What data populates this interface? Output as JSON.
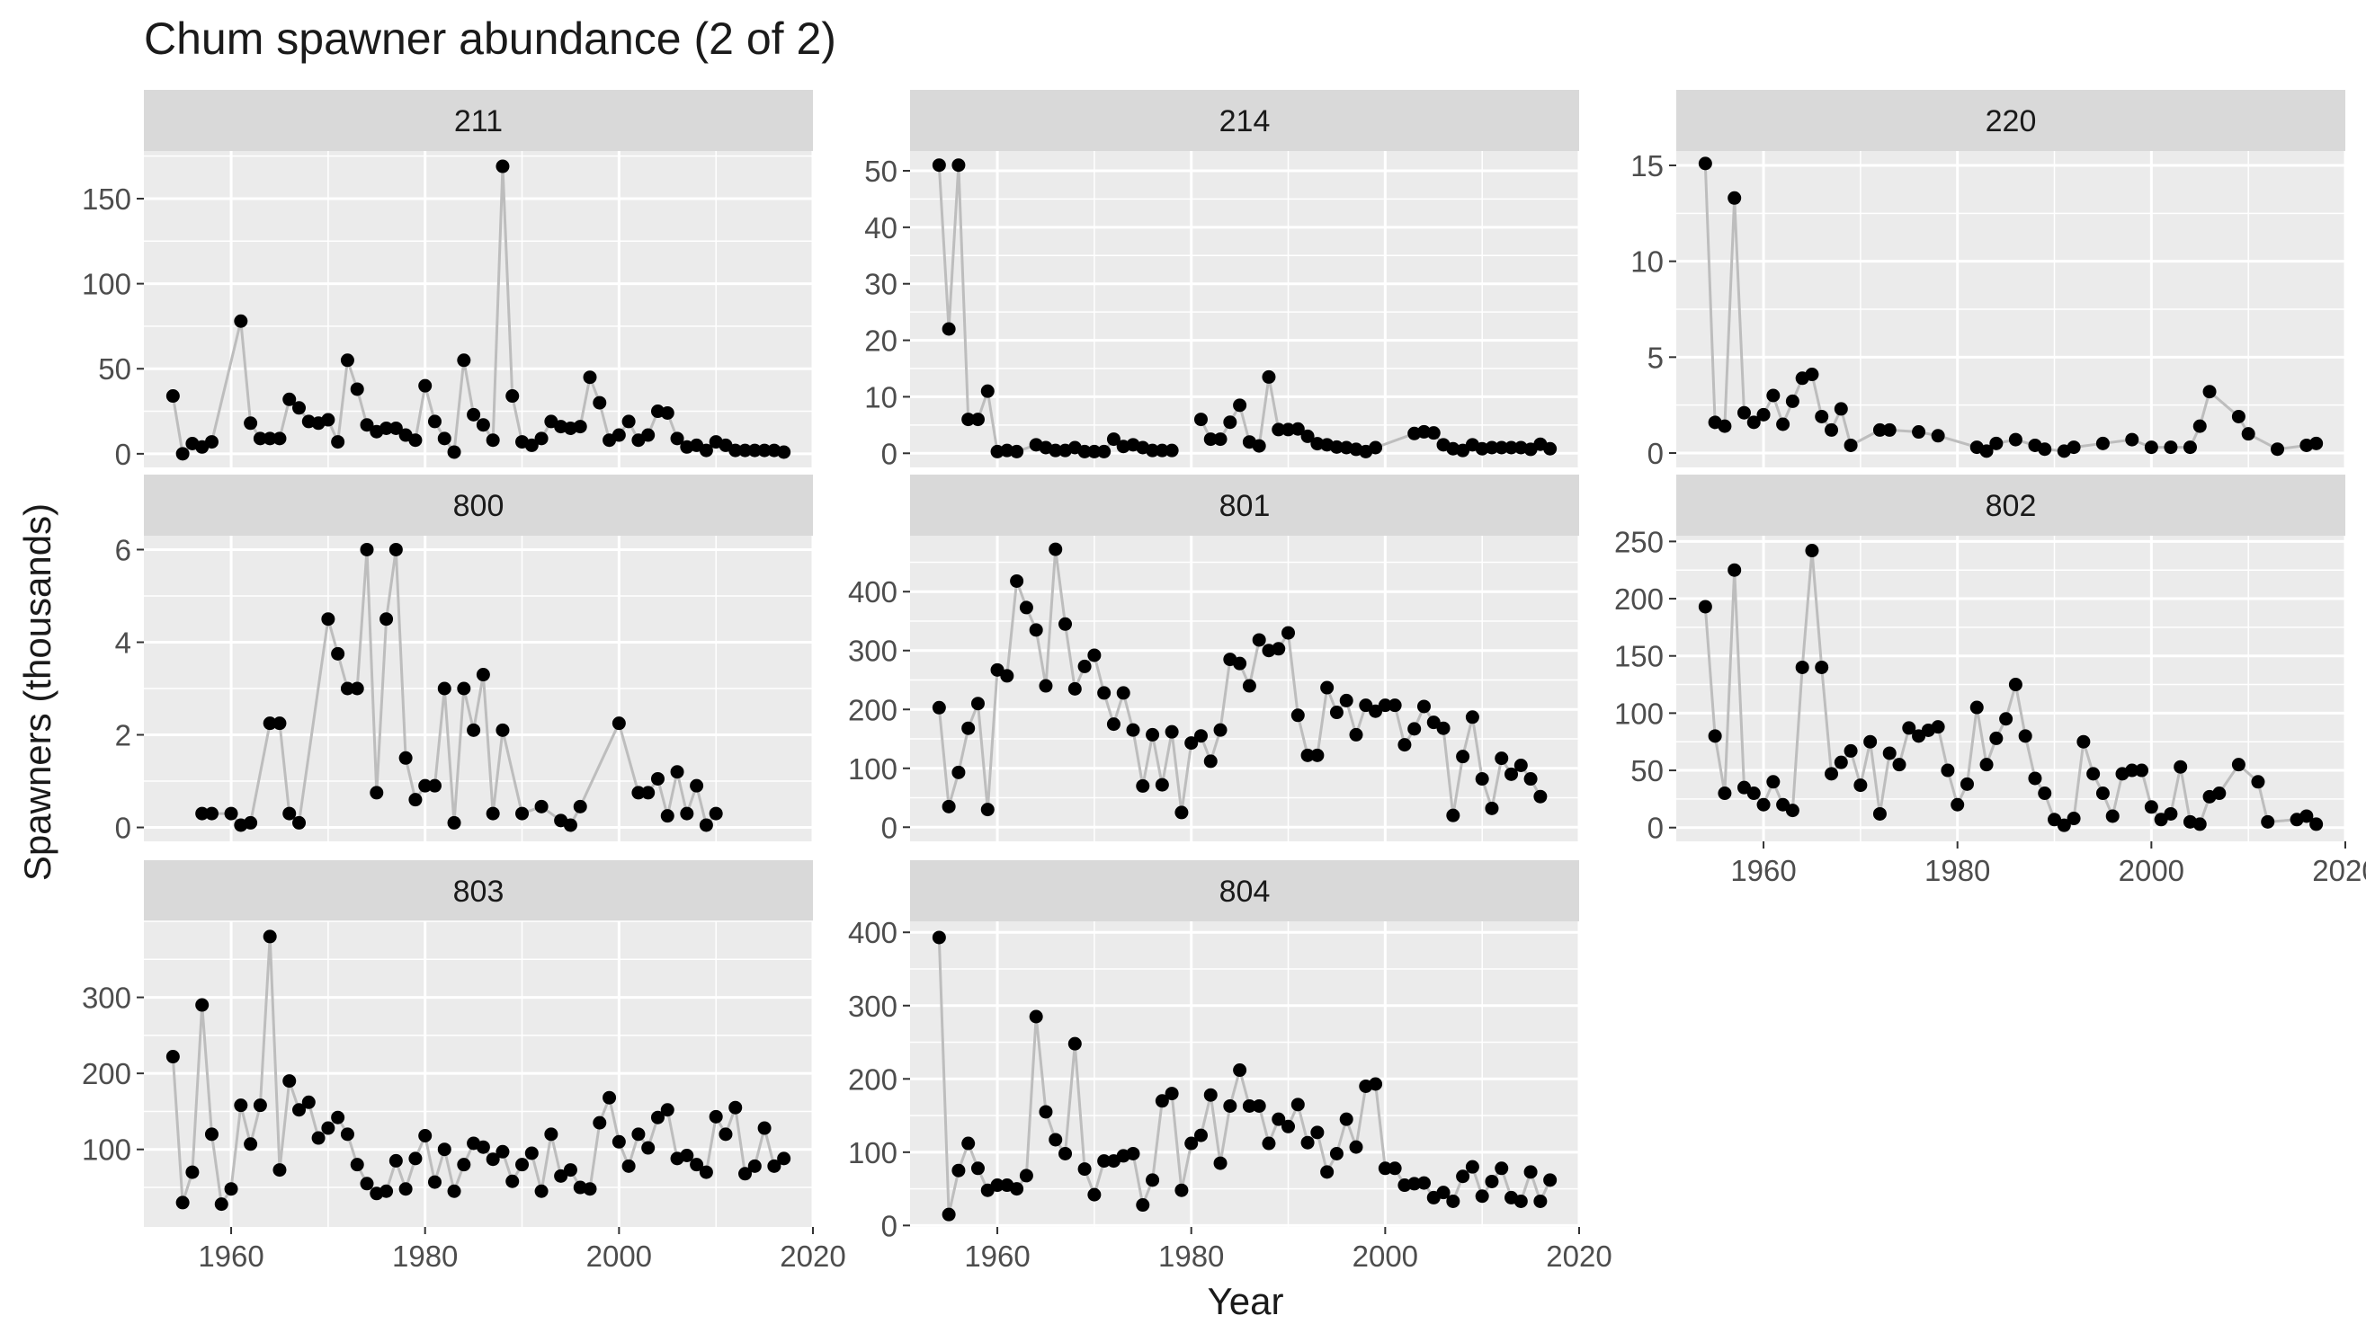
{
  "title": "Chum spawner abundance (2 of 2)",
  "xlabel": "Year",
  "ylabel": "Spawners (thousands)",
  "colors": {
    "panel_bg": "#ebebeb",
    "strip_bg": "#d9d9d9",
    "grid": "#ffffff",
    "line": "#bdbdbd",
    "point": "#000000",
    "text": "#1a1a1a",
    "axis_text": "#4d4d4d"
  },
  "chart_data": {
    "type": "line",
    "facet_layout": "3 columns x 3 rows, free y scales, shared x",
    "xlim": [
      1951,
      2020
    ],
    "x_ticks": [
      1960,
      1980,
      2000,
      2020
    ],
    "panels": [
      {
        "name": "211",
        "ylim": [
          -8,
          178
        ],
        "y_ticks": [
          0,
          50,
          100,
          150
        ],
        "x": [
          1954,
          1955,
          1956,
          1957,
          1958,
          1961,
          1962,
          1963,
          1964,
          1965,
          1966,
          1967,
          1968,
          1969,
          1970,
          1971,
          1972,
          1973,
          1974,
          1975,
          1976,
          1977,
          1978,
          1979,
          1980,
          1981,
          1982,
          1983,
          1984,
          1985,
          1986,
          1987,
          1988,
          1989,
          1990,
          1991,
          1992,
          1993,
          1994,
          1995,
          1996,
          1997,
          1998,
          1999,
          2000,
          2001,
          2002,
          2003,
          2004,
          2005,
          2006,
          2007,
          2008,
          2009,
          2010,
          2011,
          2012,
          2013,
          2014,
          2015,
          2016,
          2017
        ],
        "y": [
          34,
          0,
          6,
          4,
          7,
          78,
          18,
          9,
          9,
          9,
          32,
          27,
          19,
          18,
          20,
          7,
          55,
          38,
          17,
          13,
          15,
          15,
          11,
          8,
          40,
          19,
          9,
          1,
          55,
          23,
          17,
          8,
          169,
          34,
          7,
          5,
          9,
          19,
          16,
          15,
          16,
          45,
          30,
          8,
          11,
          19,
          8,
          11,
          25,
          24,
          9,
          4,
          5,
          2,
          7,
          5,
          2,
          2,
          2,
          2,
          2,
          1
        ]
      },
      {
        "name": "214",
        "ylim": [
          -2.5,
          53.5
        ],
        "y_ticks": [
          0,
          10,
          20,
          30,
          40,
          50
        ],
        "x": [
          1954,
          1955,
          1956,
          1957,
          1958,
          1959,
          1960,
          1961,
          1962,
          1964,
          1965,
          1966,
          1967,
          1968,
          1969,
          1970,
          1971,
          1972,
          1973,
          1974,
          1975,
          1976,
          1977,
          1978,
          1979,
          1981,
          1982,
          1983,
          1984,
          1985,
          1986,
          1987,
          1988,
          1989,
          1990,
          1991,
          1992,
          1993,
          1994,
          1995,
          1996,
          1997,
          1998,
          1999,
          2003,
          2004,
          2005,
          2006,
          2007,
          2008,
          2009,
          2010,
          2011,
          2012,
          2013,
          2014,
          2015,
          2016,
          2017
        ],
        "y": [
          51,
          22,
          51,
          6,
          6,
          11,
          0.3,
          0.5,
          0.3,
          1.5,
          1,
          0.5,
          0.5,
          1,
          0.3,
          0.3,
          0.3,
          2.5,
          1.2,
          1.5,
          1,
          0.5,
          0.5,
          0.5,
          null,
          6,
          2.5,
          2.5,
          5.5,
          8.5,
          2,
          1.3,
          13.5,
          4.2,
          4.2,
          4.3,
          3,
          1.7,
          1.5,
          1.1,
          1,
          0.7,
          0.3,
          1,
          3.5,
          3.8,
          3.6,
          1.5,
          0.8,
          0.5,
          1.5,
          0.8,
          1,
          1,
          1,
          1,
          0.7,
          1.6,
          0.8
        ]
      },
      {
        "name": "220",
        "ylim": [
          -0.75,
          15.75
        ],
        "y_ticks": [
          0,
          5,
          10,
          15
        ],
        "x": [
          1954,
          1955,
          1956,
          1957,
          1958,
          1959,
          1960,
          1961,
          1962,
          1963,
          1964,
          1965,
          1966,
          1967,
          1968,
          1969,
          1972,
          1973,
          1976,
          1978,
          1982,
          1983,
          1984,
          1986,
          1988,
          1989,
          1991,
          1992,
          1995,
          1998,
          2000,
          2002,
          2004,
          2005,
          2006,
          2009,
          2010,
          2013,
          2016,
          2017
        ],
        "y": [
          15.1,
          1.6,
          1.4,
          13.3,
          2.1,
          1.6,
          2,
          3,
          1.5,
          2.7,
          3.9,
          4.1,
          1.9,
          1.2,
          2.3,
          0.4,
          1.2,
          1.2,
          1.1,
          0.9,
          0.3,
          0.1,
          0.5,
          0.7,
          0.4,
          0.2,
          0.1,
          0.3,
          0.5,
          0.7,
          0.3,
          0.3,
          0.3,
          1.4,
          3.2,
          1.9,
          1,
          0.2,
          0.4,
          0.5
        ]
      },
      {
        "name": "800",
        "ylim": [
          -0.3,
          6.3
        ],
        "y_ticks": [
          0,
          2,
          4,
          6
        ],
        "x": [
          1957,
          1958,
          1960,
          1961,
          1962,
          1964,
          1965,
          1966,
          1967,
          1970,
          1971,
          1972,
          1973,
          1974,
          1975,
          1976,
          1977,
          1978,
          1979,
          1980,
          1981,
          1982,
          1983,
          1984,
          1985,
          1986,
          1987,
          1988,
          1990,
          1992,
          1994,
          1995,
          1996,
          2000,
          2002,
          2003,
          2004,
          2005,
          2006,
          2007,
          2008,
          2009,
          2010
        ],
        "y": [
          0.3,
          0.3,
          0.3,
          0.05,
          0.1,
          2.25,
          2.25,
          0.3,
          0.1,
          4.5,
          3.75,
          3,
          3,
          6,
          0.75,
          4.5,
          6,
          1.5,
          0.6,
          0.9,
          0.9,
          3,
          0.1,
          3,
          2.1,
          3.3,
          0.3,
          2.1,
          0.3,
          0.45,
          0.15,
          0.05,
          0.45,
          2.25,
          0.75,
          0.75,
          1.05,
          0.25,
          1.2,
          0.3,
          0.9,
          0.05,
          0.3
        ]
      },
      {
        "name": "801",
        "ylim": [
          -24,
          495
        ],
        "y_ticks": [
          0,
          100,
          200,
          300,
          400
        ],
        "x": [
          1954,
          1955,
          1956,
          1957,
          1958,
          1959,
          1960,
          1961,
          1962,
          1963,
          1964,
          1965,
          1966,
          1967,
          1968,
          1969,
          1970,
          1971,
          1972,
          1973,
          1974,
          1975,
          1976,
          1977,
          1978,
          1979,
          1980,
          1981,
          1982,
          1983,
          1984,
          1985,
          1986,
          1987,
          1988,
          1989,
          1990,
          1991,
          1992,
          1993,
          1994,
          1995,
          1996,
          1997,
          1998,
          1999,
          2000,
          2001,
          2002,
          2003,
          2004,
          2005,
          2006,
          2007,
          2008,
          2009,
          2010,
          2011,
          2012,
          2013,
          2014,
          2015,
          2016,
          2017
        ],
        "y": [
          203,
          35,
          93,
          168,
          210,
          30,
          267,
          257,
          418,
          373,
          335,
          240,
          472,
          345,
          235,
          273,
          292,
          228,
          175,
          228,
          165,
          70,
          157,
          72,
          162,
          25,
          143,
          155,
          112,
          165,
          285,
          278,
          240,
          318,
          300,
          303,
          330,
          190,
          122,
          122,
          237,
          195,
          215,
          157,
          207,
          197,
          207,
          207,
          140,
          167,
          205,
          178,
          168,
          20,
          120,
          187,
          82,
          32,
          117,
          90,
          105,
          82,
          52,
          null
        ]
      },
      {
        "name": "802",
        "ylim": [
          -12,
          255
        ],
        "y_ticks": [
          0,
          50,
          100,
          150,
          200,
          250
        ],
        "x": [
          1954,
          1955,
          1956,
          1957,
          1958,
          1959,
          1960,
          1961,
          1962,
          1963,
          1964,
          1965,
          1966,
          1967,
          1968,
          1969,
          1970,
          1971,
          1972,
          1973,
          1974,
          1975,
          1976,
          1977,
          1978,
          1979,
          1980,
          1981,
          1982,
          1983,
          1984,
          1985,
          1986,
          1987,
          1988,
          1989,
          1990,
          1991,
          1992,
          1993,
          1994,
          1995,
          1996,
          1997,
          1998,
          1999,
          2000,
          2001,
          2002,
          2003,
          2004,
          2005,
          2006,
          2007,
          2009,
          2011,
          2012,
          2015,
          2016,
          2017
        ],
        "y": [
          193,
          80,
          30,
          225,
          35,
          30,
          20,
          40,
          20,
          15,
          140,
          242,
          140,
          47,
          57,
          67,
          37,
          75,
          12,
          65,
          55,
          87,
          80,
          85,
          88,
          50,
          20,
          38,
          105,
          55,
          78,
          95,
          125,
          80,
          43,
          30,
          7,
          2,
          8,
          75,
          47,
          30,
          10,
          47,
          50,
          50,
          18,
          7,
          12,
          53,
          5,
          3,
          27,
          30,
          55,
          40,
          5,
          7,
          10,
          3
        ]
      },
      {
        "name": "803",
        "ylim": [
          -2,
          400
        ],
        "y_ticks": [
          100,
          200,
          300
        ],
        "x": [
          1954,
          1955,
          1956,
          1957,
          1958,
          1959,
          1960,
          1961,
          1962,
          1963,
          1964,
          1965,
          1966,
          1967,
          1968,
          1969,
          1970,
          1971,
          1972,
          1973,
          1974,
          1975,
          1976,
          1977,
          1978,
          1979,
          1980,
          1981,
          1982,
          1983,
          1984,
          1985,
          1986,
          1987,
          1988,
          1989,
          1990,
          1991,
          1992,
          1993,
          1994,
          1995,
          1996,
          1997,
          1998,
          1999,
          2000,
          2001,
          2002,
          2003,
          2004,
          2005,
          2006,
          2007,
          2008,
          2009,
          2010,
          2011,
          2012,
          2013,
          2014,
          2015,
          2016,
          2017
        ],
        "y": [
          222,
          30,
          70,
          290,
          120,
          28,
          48,
          158,
          107,
          158,
          380,
          73,
          190,
          152,
          162,
          115,
          128,
          142,
          120,
          80,
          55,
          42,
          45,
          85,
          48,
          88,
          118,
          57,
          100,
          45,
          80,
          108,
          103,
          87,
          97,
          58,
          80,
          95,
          45,
          120,
          65,
          73,
          50,
          48,
          135,
          168,
          110,
          78,
          120,
          102,
          142,
          152,
          88,
          92,
          80,
          70,
          143,
          120,
          155,
          68,
          78,
          128,
          78,
          88
        ]
      },
      {
        "name": "804",
        "ylim": [
          -2,
          415
        ],
        "y_ticks": [
          0,
          100,
          200,
          300,
          400
        ],
        "x": [
          1954,
          1955,
          1956,
          1957,
          1958,
          1959,
          1960,
          1961,
          1962,
          1963,
          1964,
          1965,
          1966,
          1967,
          1968,
          1969,
          1970,
          1971,
          1972,
          1973,
          1974,
          1975,
          1976,
          1977,
          1978,
          1979,
          1980,
          1981,
          1982,
          1983,
          1984,
          1985,
          1986,
          1987,
          1988,
          1989,
          1990,
          1991,
          1992,
          1993,
          1994,
          1995,
          1996,
          1997,
          1998,
          1999,
          2000,
          2001,
          2002,
          2003,
          2004,
          2005,
          2006,
          2007,
          2008,
          2009,
          2010,
          2011,
          2012,
          2013,
          2014,
          2015,
          2016,
          2017
        ],
        "y": [
          393,
          15,
          75,
          112,
          78,
          48,
          55,
          55,
          50,
          68,
          285,
          155,
          117,
          98,
          248,
          77,
          42,
          88,
          88,
          95,
          98,
          28,
          62,
          170,
          180,
          48,
          112,
          123,
          178,
          85,
          163,
          212,
          163,
          163,
          112,
          145,
          135,
          165,
          113,
          127,
          73,
          98,
          145,
          107,
          190,
          193,
          78,
          78,
          55,
          57,
          58,
          38,
          45,
          33,
          67,
          80,
          40,
          60,
          78,
          38,
          33,
          73,
          33,
          62
        ]
      }
    ]
  }
}
